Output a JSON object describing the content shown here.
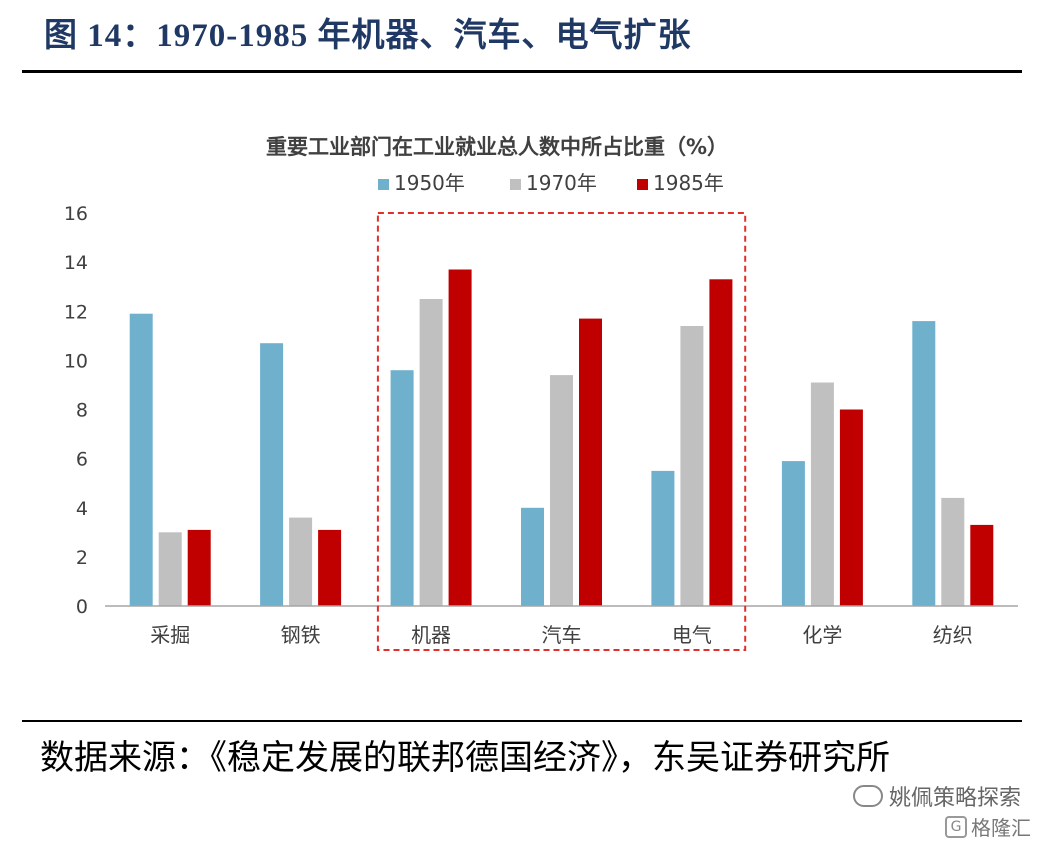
{
  "figure": {
    "title": "图 14：1970-1985 年机器、汽车、电气扩张"
  },
  "source": "数据来源：《稳定发展的联邦德国经济》，东吴证券研究所",
  "watermark": "姚佩策略探索",
  "brand": "格隆汇",
  "colors": {
    "s1950": "#6fb1cd",
    "s1970": "#c0c0c0",
    "s1985": "#c00000",
    "highlight": "#e0302a",
    "axis": "#a6a6a6"
  },
  "chart_data": {
    "type": "bar",
    "title": "重要工业部门在工业就业总人数中所占比重（%）",
    "categories": [
      "采掘",
      "钢铁",
      "机器",
      "汽车",
      "电气",
      "化学",
      "纺织"
    ],
    "series": [
      {
        "name": "1950年",
        "values": [
          11.9,
          10.7,
          9.6,
          4.0,
          5.5,
          5.9,
          11.6
        ]
      },
      {
        "name": "1970年",
        "values": [
          3.0,
          3.6,
          12.5,
          9.4,
          11.4,
          9.1,
          4.4
        ]
      },
      {
        "name": "1985年",
        "values": [
          3.1,
          3.1,
          13.7,
          11.7,
          13.3,
          8.0,
          3.3
        ]
      }
    ],
    "ylim": [
      0,
      16
    ],
    "yticks": [
      "0",
      "2",
      "4",
      "6",
      "8",
      "10",
      "12",
      "14",
      "16"
    ],
    "grid": false,
    "legend": "top-center",
    "highlight_categories": [
      "机器",
      "汽车",
      "电气"
    ]
  }
}
